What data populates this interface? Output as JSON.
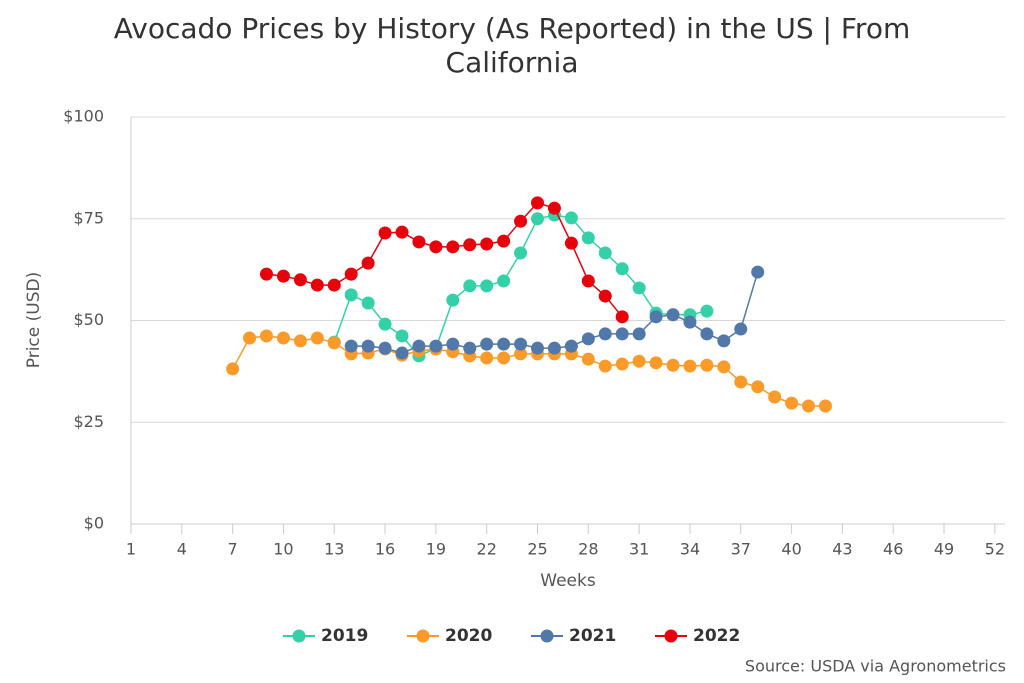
{
  "chart_data": {
    "type": "line",
    "title": "Avocado Prices by History (As Reported) in the US | From California",
    "x_label": "Weeks",
    "y_label": "Price (USD)",
    "source": "Source: USDA via Agronometrics",
    "x": [
      7,
      8,
      9,
      10,
      11,
      12,
      13,
      14,
      15,
      16,
      17,
      18,
      19,
      20,
      21,
      22,
      23,
      24,
      25,
      26,
      27,
      28,
      29,
      30,
      31,
      32,
      33,
      34,
      35,
      36,
      37,
      38,
      39,
      40,
      41,
      42
    ],
    "xlim": [
      1,
      52.6
    ],
    "xticks": [
      1,
      4,
      7,
      10,
      13,
      16,
      19,
      22,
      25,
      28,
      31,
      34,
      37,
      40,
      43,
      46,
      49,
      52
    ],
    "ylim": [
      0,
      100
    ],
    "yticks": [
      {
        "value": 0,
        "label": "$0"
      },
      {
        "value": 25,
        "label": "$25"
      },
      {
        "value": 50,
        "label": "$50"
      },
      {
        "value": 75,
        "label": "$75"
      },
      {
        "value": 100,
        "label": "$100"
      }
    ],
    "grid": true,
    "legend": "bottom",
    "series": [
      {
        "name": "2019",
        "color": "#34d1a8",
        "values": [
          null,
          null,
          null,
          null,
          null,
          null,
          44.7,
          56.3,
          54.3,
          49.1,
          46.2,
          41.3,
          43.2,
          55,
          58.5,
          58.5,
          59.7,
          66.6,
          75,
          75.9,
          75.2,
          70.3,
          66.6,
          62.7,
          58,
          51.8,
          51.4,
          51.4,
          52.3,
          null,
          null,
          null,
          null,
          null,
          null,
          null
        ]
      },
      {
        "name": "2020",
        "color": "#fa9a28",
        "values": [
          38.1,
          45.7,
          46.2,
          45.7,
          45,
          45.7,
          44.5,
          41.8,
          42,
          43,
          41.5,
          42.5,
          43,
          42.3,
          41.3,
          40.8,
          40.8,
          41.8,
          41.8,
          41.8,
          41.8,
          40.5,
          38.8,
          39.3,
          40,
          39.6,
          39,
          38.8,
          39,
          38.6,
          34.9,
          33.7,
          31.2,
          29.7,
          29,
          29
        ]
      },
      {
        "name": "2021",
        "color": "#5178a8",
        "values": [
          null,
          null,
          null,
          null,
          null,
          null,
          null,
          43.7,
          43.7,
          43.2,
          42,
          43.7,
          43.7,
          44.2,
          43.2,
          44.2,
          44.2,
          44.2,
          43.2,
          43.2,
          43.7,
          45.5,
          46.7,
          46.7,
          46.7,
          50.9,
          51.4,
          49.6,
          46.7,
          45,
          47.9,
          61.9,
          null,
          null,
          null,
          null
        ]
      },
      {
        "name": "2022",
        "color": "#e8000b",
        "values": [
          null,
          null,
          61.4,
          60.9,
          60,
          58.7,
          58.7,
          61.4,
          64.1,
          71.5,
          71.7,
          69.3,
          68.1,
          68.1,
          68.6,
          68.8,
          69.5,
          74.4,
          78.9,
          77.6,
          69,
          59.7,
          56,
          50.9,
          null,
          null,
          null,
          null,
          null,
          null,
          null,
          null,
          null,
          null,
          null,
          null
        ]
      }
    ]
  }
}
